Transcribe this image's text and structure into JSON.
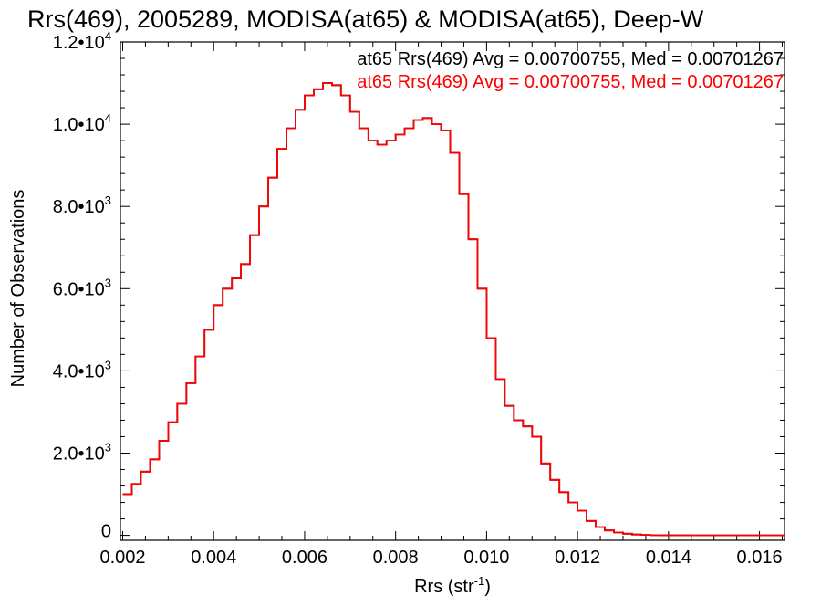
{
  "chart_data": {
    "type": "line",
    "title": "Rrs(469), 2005289, MODISA(at65) & MODISA(at65), Deep-W",
    "xlabel": "Rrs (str",
    "xlabel_sup": "-1",
    "xlabel_suffix": ")",
    "ylabel": "Number of Observations",
    "xlim": [
      0.00195,
      0.01655
    ],
    "ylim": [
      -120,
      12000
    ],
    "x_ticks": [
      {
        "v": 0.002,
        "label": "0.002"
      },
      {
        "v": 0.004,
        "label": "0.004"
      },
      {
        "v": 0.006,
        "label": "0.006"
      },
      {
        "v": 0.008,
        "label": "0.008"
      },
      {
        "v": 0.01,
        "label": "0.010"
      },
      {
        "v": 0.012,
        "label": "0.012"
      },
      {
        "v": 0.014,
        "label": "0.014"
      },
      {
        "v": 0.016,
        "label": "0.016"
      }
    ],
    "y_ticks": [
      {
        "v": 0,
        "label": "0",
        "exp": ""
      },
      {
        "v": 2000,
        "label": "2.0•10",
        "exp": "3"
      },
      {
        "v": 4000,
        "label": "4.0•10",
        "exp": "3"
      },
      {
        "v": 6000,
        "label": "6.0•10",
        "exp": "3"
      },
      {
        "v": 8000,
        "label": "8.0•10",
        "exp": "3"
      },
      {
        "v": 10000,
        "label": "1.0•10",
        "exp": "4"
      },
      {
        "v": 12000,
        "label": "1.2•10",
        "exp": "4"
      }
    ],
    "series": [
      {
        "name": "at65 Rrs(469) Avg = 0.00700755, Med = 0.00701267",
        "color": "#000000",
        "x": [
          0.002,
          0.0022,
          0.0024,
          0.0026,
          0.0028,
          0.003,
          0.0032,
          0.0034,
          0.0036,
          0.0038,
          0.004,
          0.0042,
          0.0044,
          0.0046,
          0.0048,
          0.005,
          0.0052,
          0.0054,
          0.0056,
          0.0058,
          0.006,
          0.0062,
          0.0064,
          0.0066,
          0.0068,
          0.007,
          0.0072,
          0.0074,
          0.0076,
          0.0078,
          0.008,
          0.0082,
          0.0084,
          0.0086,
          0.0088,
          0.009,
          0.0092,
          0.0094,
          0.0096,
          0.0098,
          0.01,
          0.0102,
          0.0104,
          0.0106,
          0.0108,
          0.011,
          0.0112,
          0.0114,
          0.0116,
          0.0118,
          0.012,
          0.0122,
          0.0124,
          0.0126,
          0.0128,
          0.013,
          0.0132,
          0.0134,
          0.0136,
          0.0138,
          0.014,
          0.0145,
          0.015,
          0.0155,
          0.016,
          0.0165
        ],
        "y": [
          1000,
          1250,
          1550,
          1850,
          2300,
          2750,
          3200,
          3700,
          4350,
          5000,
          5600,
          6000,
          6250,
          6600,
          7300,
          8000,
          8700,
          9400,
          9900,
          10350,
          10700,
          10850,
          11000,
          10950,
          10700,
          10300,
          9900,
          9600,
          9500,
          9600,
          9750,
          9900,
          10100,
          10150,
          10000,
          9850,
          9300,
          8300,
          7200,
          6000,
          4800,
          3800,
          3150,
          2800,
          2650,
          2400,
          1750,
          1350,
          1050,
          800,
          600,
          350,
          200,
          120,
          70,
          40,
          20,
          10,
          5,
          2,
          1,
          0,
          0,
          0,
          0,
          0
        ]
      },
      {
        "name": "at65 Rrs(469) Avg = 0.00700755, Med = 0.00701267",
        "color": "#ff0000",
        "x": [
          0.002,
          0.0022,
          0.0024,
          0.0026,
          0.0028,
          0.003,
          0.0032,
          0.0034,
          0.0036,
          0.0038,
          0.004,
          0.0042,
          0.0044,
          0.0046,
          0.0048,
          0.005,
          0.0052,
          0.0054,
          0.0056,
          0.0058,
          0.006,
          0.0062,
          0.0064,
          0.0066,
          0.0068,
          0.007,
          0.0072,
          0.0074,
          0.0076,
          0.0078,
          0.008,
          0.0082,
          0.0084,
          0.0086,
          0.0088,
          0.009,
          0.0092,
          0.0094,
          0.0096,
          0.0098,
          0.01,
          0.0102,
          0.0104,
          0.0106,
          0.0108,
          0.011,
          0.0112,
          0.0114,
          0.0116,
          0.0118,
          0.012,
          0.0122,
          0.0124,
          0.0126,
          0.0128,
          0.013,
          0.0132,
          0.0134,
          0.0136,
          0.0138,
          0.014,
          0.0145,
          0.015,
          0.0155,
          0.016,
          0.0165
        ],
        "y": [
          1000,
          1250,
          1550,
          1850,
          2300,
          2750,
          3200,
          3700,
          4350,
          5000,
          5600,
          6000,
          6250,
          6600,
          7300,
          8000,
          8700,
          9400,
          9900,
          10350,
          10700,
          10850,
          11000,
          10950,
          10700,
          10300,
          9900,
          9600,
          9500,
          9600,
          9750,
          9900,
          10100,
          10150,
          10000,
          9850,
          9300,
          8300,
          7200,
          6000,
          4800,
          3800,
          3150,
          2800,
          2650,
          2400,
          1750,
          1350,
          1050,
          800,
          600,
          350,
          200,
          120,
          70,
          40,
          20,
          10,
          5,
          2,
          1,
          0,
          0,
          0,
          0,
          0
        ]
      }
    ]
  }
}
